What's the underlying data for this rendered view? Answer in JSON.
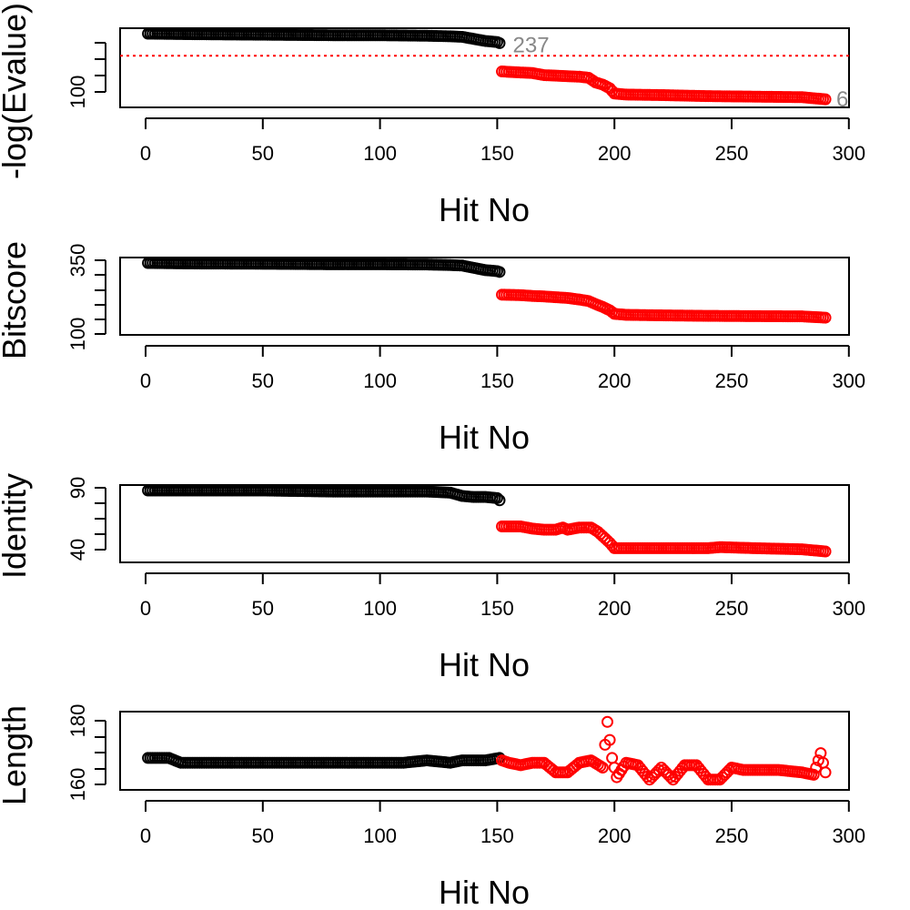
{
  "colors": {
    "above_threshold": "#000000",
    "below_threshold": "#ff0000",
    "threshold_line": "#ff0000",
    "annotation": "#888888"
  },
  "chart_data": [
    {
      "type": "scatter",
      "ylabel": "-log(Evalue)",
      "xlabel": "Hit No",
      "xlim": [
        0,
        290
      ],
      "ylim": [
        82,
        212
      ],
      "x_ticks": [
        "0",
        "50",
        "100",
        "150",
        "200",
        "250",
        "300"
      ],
      "y_tick_labels": [
        "100"
      ],
      "threshold": 170,
      "annotations": [
        {
          "text": "237",
          "x": 152,
          "y": 190
        },
        {
          "text": "6",
          "x": 290,
          "y": 87
        }
      ],
      "series": [
        {
          "color": "#000000",
          "points": [
            [
              1,
              212
            ],
            [
              20,
              211
            ],
            [
              50,
              210
            ],
            [
              80,
              209
            ],
            [
              100,
              209
            ],
            [
              120,
              208
            ],
            [
              130,
              207
            ],
            [
              135,
              206
            ],
            [
              140,
              202
            ],
            [
              145,
              198
            ],
            [
              150,
              196
            ],
            [
              151,
              194
            ]
          ]
        },
        {
          "color": "#ff0000",
          "points": [
            [
              152,
              140
            ],
            [
              160,
              138
            ],
            [
              165,
              137
            ],
            [
              170,
              133
            ],
            [
              175,
              132
            ],
            [
              180,
              131
            ],
            [
              185,
              130
            ],
            [
              189,
              128
            ],
            [
              192,
              119
            ],
            [
              195,
              115
            ],
            [
              198,
              108
            ],
            [
              200,
              98
            ],
            [
              205,
              96
            ],
            [
              220,
              95
            ],
            [
              240,
              93
            ],
            [
              260,
              92
            ],
            [
              280,
              91
            ],
            [
              290,
              87
            ]
          ]
        }
      ]
    },
    {
      "type": "scatter",
      "ylabel": "Bitscore",
      "xlabel": "Hit No",
      "xlim": [
        0,
        290
      ],
      "ylim": [
        95,
        355
      ],
      "x_ticks": [
        "0",
        "50",
        "100",
        "150",
        "200",
        "250",
        "300"
      ],
      "y_tick_labels": [
        "100",
        "350"
      ],
      "series": [
        {
          "color": "#000000",
          "points": [
            [
              1,
              355
            ],
            [
              20,
              353
            ],
            [
              50,
              352
            ],
            [
              80,
              350
            ],
            [
              100,
              350
            ],
            [
              120,
              349
            ],
            [
              130,
              347
            ],
            [
              135,
              345
            ],
            [
              140,
              336
            ],
            [
              145,
              327
            ],
            [
              150,
              323
            ],
            [
              151,
              320
            ]
          ]
        },
        {
          "color": "#ff0000",
          "points": [
            [
              152,
              231
            ],
            [
              160,
              229
            ],
            [
              165,
              226
            ],
            [
              170,
              224
            ],
            [
              180,
              218
            ],
            [
              185,
              212
            ],
            [
              189,
              206
            ],
            [
              192,
              194
            ],
            [
              195,
              183
            ],
            [
              198,
              170
            ],
            [
              200,
              156
            ],
            [
              205,
              152
            ],
            [
              220,
              150
            ],
            [
              240,
              148
            ],
            [
              260,
              147
            ],
            [
              280,
              146
            ],
            [
              290,
              141
            ]
          ]
        }
      ]
    },
    {
      "type": "scatter",
      "ylabel": "Identity",
      "xlabel": "Hit No",
      "xlim": [
        0,
        290
      ],
      "ylim": [
        36,
        97
      ],
      "x_ticks": [
        "0",
        "50",
        "100",
        "150",
        "200",
        "250",
        "300"
      ],
      "y_tick_labels": [
        "40",
        "90"
      ],
      "series": [
        {
          "color": "#000000",
          "points": [
            [
              1,
              97
            ],
            [
              20,
              97
            ],
            [
              50,
              97
            ],
            [
              80,
              96
            ],
            [
              100,
              96
            ],
            [
              120,
              96
            ],
            [
              130,
              95
            ],
            [
              135,
              92
            ],
            [
              140,
              91
            ],
            [
              145,
              91
            ],
            [
              150,
              90
            ],
            [
              151,
              88
            ]
          ]
        },
        {
          "color": "#ff0000",
          "points": [
            [
              152,
              64
            ],
            [
              160,
              64
            ],
            [
              165,
              62
            ],
            [
              170,
              61
            ],
            [
              175,
              61
            ],
            [
              178,
              63
            ],
            [
              180,
              61
            ],
            [
              185,
              63
            ],
            [
              190,
              63
            ],
            [
              193,
              59
            ],
            [
              195,
              55
            ],
            [
              198,
              49
            ],
            [
              200,
              44
            ],
            [
              220,
              44
            ],
            [
              240,
              44
            ],
            [
              245,
              45
            ],
            [
              260,
              44
            ],
            [
              280,
              43
            ],
            [
              290,
              41
            ]
          ]
        }
      ]
    },
    {
      "type": "scatter",
      "ylabel": "Length",
      "xlabel": "Hit No",
      "xlim": [
        0,
        290
      ],
      "ylim": [
        157,
        185
      ],
      "x_ticks": [
        "0",
        "50",
        "100",
        "150",
        "200",
        "250",
        "300"
      ],
      "y_tick_labels": [
        "160",
        "180"
      ],
      "series": [
        {
          "color": "#000000",
          "points": [
            [
              1,
              168
            ],
            [
              5,
              168
            ],
            [
              10,
              168
            ],
            [
              15,
              166
            ],
            [
              30,
              166
            ],
            [
              60,
              166
            ],
            [
              90,
              166
            ],
            [
              110,
              166
            ],
            [
              120,
              167
            ],
            [
              130,
              166
            ],
            [
              135,
              167
            ],
            [
              140,
              167
            ],
            [
              145,
              167
            ],
            [
              151,
              168
            ]
          ]
        },
        {
          "color": "#ff0000",
          "points": [
            [
              152,
              167
            ],
            [
              155,
              166
            ],
            [
              160,
              165
            ],
            [
              165,
              166
            ],
            [
              170,
              166
            ],
            [
              175,
              162
            ],
            [
              180,
              162
            ],
            [
              185,
              166
            ],
            [
              190,
              167
            ],
            [
              195,
              164
            ],
            [
              197,
              183
            ],
            [
              199,
              168
            ],
            [
              201,
              160
            ],
            [
              205,
              166
            ],
            [
              210,
              165
            ],
            [
              215,
              159
            ],
            [
              220,
              164
            ],
            [
              225,
              159
            ],
            [
              230,
              165
            ],
            [
              235,
              165
            ],
            [
              240,
              159
            ],
            [
              245,
              159
            ],
            [
              250,
              164
            ],
            [
              255,
              163
            ],
            [
              260,
              163
            ],
            [
              270,
              163
            ],
            [
              280,
              162
            ],
            [
              285,
              161
            ],
            [
              288,
              170
            ],
            [
              290,
              162
            ]
          ]
        }
      ]
    }
  ]
}
